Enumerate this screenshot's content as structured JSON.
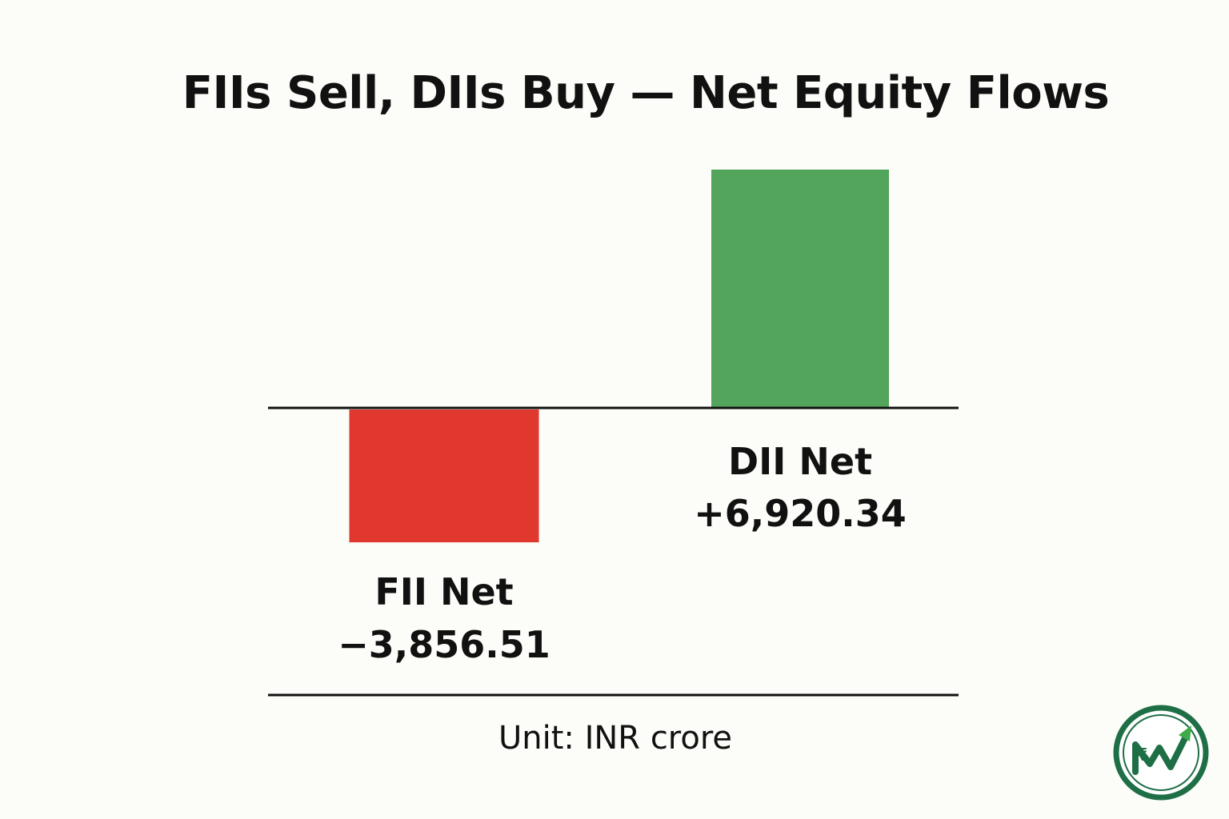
{
  "chart_data": {
    "type": "bar",
    "title": "FIIs Sell, DIIs Buy — Net Equity Flows",
    "xlabel": "",
    "ylabel": "",
    "unit_note": "Unit: INR crore",
    "categories": [
      "FII Net",
      "DII Net"
    ],
    "values": [
      -3856.51,
      6920.34
    ],
    "value_labels": [
      "−3,856.51",
      "+6,920.34"
    ],
    "colors": [
      "#e0372e",
      "#52a55a"
    ],
    "ylim": [
      -5000,
      7000
    ],
    "grid": false,
    "legend": "none"
  },
  "logo": {
    "name": "brand-logo",
    "colors": {
      "ring": "#1e6e46",
      "arrow": "#3faa4a"
    }
  }
}
